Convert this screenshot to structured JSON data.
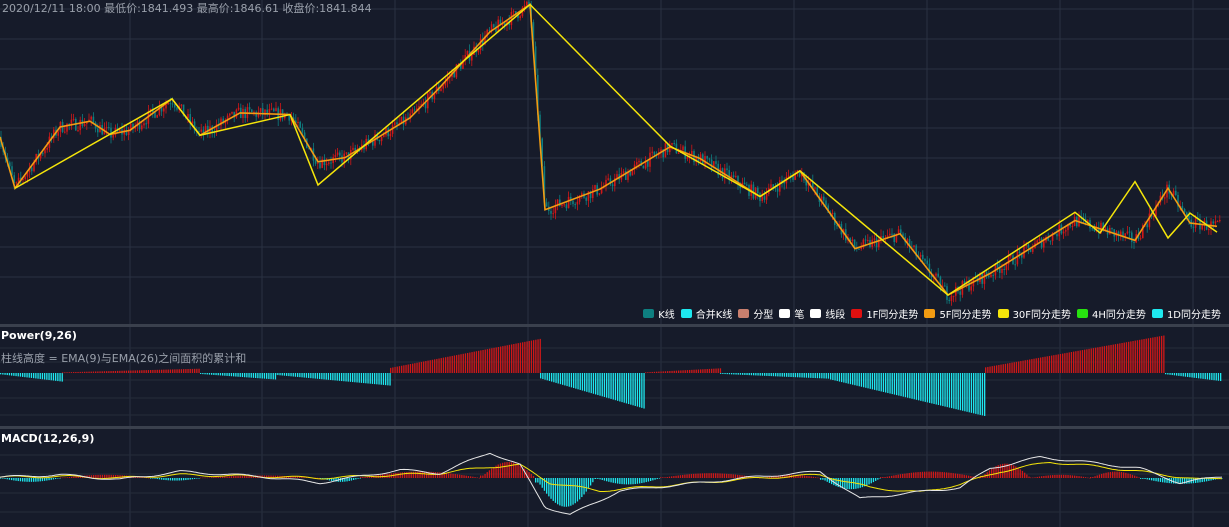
{
  "info_text": "2020/12/11 18:00 最低价:1841.493 最高价:1846.61 收盘价:1841.844",
  "power": {
    "title": "Power(9,26)",
    "description": "柱线高度 = EMA(9)与EMA(26)之间面积的累计和"
  },
  "macd": {
    "title": "MACD(12,26,9)"
  },
  "legend": [
    {
      "label": "K线",
      "color": "#0e7f80"
    },
    {
      "label": "合并K线",
      "color": "#1ee8ef"
    },
    {
      "label": "分型",
      "color": "#c97f6e"
    },
    {
      "label": "笔",
      "color": "#ffffff"
    },
    {
      "label": "线段",
      "color": "#ffffff"
    },
    {
      "label": "1F同分走势",
      "color": "#e01010"
    },
    {
      "label": "5F同分走势",
      "color": "#f39c12"
    },
    {
      "label": "30F同分走势",
      "color": "#f5e50a"
    },
    {
      "label": "4H同分走势",
      "color": "#27e20f"
    },
    {
      "label": "1D同分走势",
      "color": "#1ee8ef"
    }
  ],
  "colors": {
    "up": "#d01818",
    "down": "#0e7f80",
    "bi": "#f39c12",
    "segment": "#f5e50a",
    "power_pos": "#d01818",
    "power_neg": "#1ee8ef",
    "dif": "#e6e6e6",
    "dea": "#f5e50a"
  },
  "chart_data": [
    {
      "type": "line",
      "name": "price-zigzag",
      "x": [
        0,
        15,
        60,
        90,
        110,
        130,
        172,
        200,
        240,
        290,
        318,
        345,
        410,
        440,
        490,
        530,
        545,
        600,
        670,
        700,
        760,
        800,
        855,
        900,
        948,
        990,
        1075,
        1135,
        1168,
        1190,
        1217
      ],
      "values": [
        1842.5,
        1836.3,
        1843.7,
        1844.4,
        1842.8,
        1843.3,
        1847.1,
        1842.7,
        1845.4,
        1845.2,
        1839.5,
        1840.0,
        1844.8,
        1848.5,
        1855.2,
        1858.5,
        1833.7,
        1836.2,
        1841.3,
        1839.9,
        1835.3,
        1838.4,
        1829.0,
        1830.8,
        1823.4,
        1826.0,
        1832.4,
        1830.0,
        1836.3,
        1832.1,
        1831.7
      ]
    },
    {
      "type": "line",
      "name": "segment",
      "x": [
        15,
        172,
        200,
        290,
        318,
        530,
        670,
        760,
        800,
        948,
        1075,
        1100,
        1135,
        1168,
        1190,
        1217
      ],
      "values": [
        1836.3,
        1847.1,
        1842.7,
        1845.2,
        1836.7,
        1858.5,
        1841.4,
        1835.3,
        1838.4,
        1823.4,
        1833.4,
        1830.9,
        1837.1,
        1830.3,
        1833.3,
        1831.0
      ]
    },
    {
      "type": "bar",
      "name": "power",
      "x_ranges": [
        [
          0,
          62,
          -0.24
        ],
        [
          62,
          200,
          0.12
        ],
        [
          200,
          275,
          -0.18
        ],
        [
          275,
          390,
          -0.35
        ],
        [
          390,
          540,
          0.95
        ],
        [
          540,
          645,
          -1.0
        ],
        [
          645,
          720,
          0.13
        ],
        [
          720,
          830,
          -0.16
        ],
        [
          830,
          985,
          -1.2
        ],
        [
          985,
          1165,
          1.05
        ],
        [
          1165,
          1222,
          -0.23
        ]
      ]
    },
    {
      "type": "line",
      "name": "macd",
      "dif": {
        "x": [
          0,
          60,
          120,
          180,
          260,
          320,
          400,
          440,
          490,
          520,
          545,
          570,
          620,
          700,
          760,
          820,
          860,
          900,
          960,
          990,
          1040,
          1100,
          1140,
          1180,
          1222
        ],
        "values": [
          0.05,
          0.2,
          -0.1,
          0.4,
          0.1,
          -0.3,
          0.5,
          0.3,
          1.6,
          0.8,
          -1.8,
          -2.3,
          -0.8,
          -0.3,
          0.1,
          0.4,
          -1.3,
          -1.0,
          -0.6,
          0.6,
          1.3,
          0.9,
          0.6,
          -0.3,
          0.1
        ]
      },
      "dea": {
        "x": [
          0,
          60,
          120,
          180,
          260,
          320,
          400,
          440,
          490,
          520,
          550,
          600,
          700,
          760,
          820,
          870,
          920,
          960,
          1000,
          1050,
          1100,
          1140,
          1200,
          1222
        ],
        "values": [
          0.05,
          0.1,
          0.0,
          0.2,
          0.1,
          0.0,
          0.2,
          0.3,
          0.7,
          0.8,
          -0.3,
          -0.8,
          -0.3,
          0.0,
          0.2,
          -0.6,
          -0.9,
          -0.4,
          0.4,
          1.0,
          0.7,
          0.4,
          -0.1,
          0.0
        ]
      },
      "histogram": [
        [
          0,
          60,
          -0.12
        ],
        [
          60,
          150,
          0.1
        ],
        [
          150,
          200,
          -0.08
        ],
        [
          200,
          320,
          0.08
        ],
        [
          320,
          360,
          -0.12
        ],
        [
          360,
          480,
          0.2
        ],
        [
          480,
          535,
          0.5
        ],
        [
          535,
          595,
          -0.9
        ],
        [
          595,
          660,
          -0.2
        ],
        [
          660,
          760,
          0.15
        ],
        [
          760,
          820,
          0.1
        ],
        [
          820,
          880,
          -0.35
        ],
        [
          880,
          980,
          0.2
        ],
        [
          980,
          1030,
          0.45
        ],
        [
          1030,
          1090,
          0.1
        ],
        [
          1090,
          1140,
          0.2
        ],
        [
          1140,
          1222,
          -0.18
        ]
      ]
    }
  ]
}
